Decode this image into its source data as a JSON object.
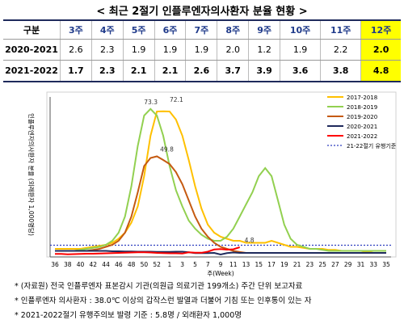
{
  "title": "< 최근 2절기 인플루엔자의사환자 분율 현황 >",
  "table": {
    "header": [
      "구분",
      "3주",
      "4주",
      "5주",
      "6주",
      "7주",
      "8주",
      "9주",
      "10주",
      "11주",
      "12주"
    ],
    "rows": [
      [
        "2020-2021",
        "2.6",
        "2.3",
        "1.9",
        "1.9",
        "1.9",
        "2.0",
        "1.2",
        "1.9",
        "2.2",
        "2.0"
      ],
      [
        "2021-2022",
        "1.7",
        "2.3",
        "2.1",
        "2.1",
        "2.6",
        "3.7",
        "3.9",
        "3.6",
        "3.8",
        "4.8"
      ]
    ]
  },
  "chart_data": {
    "type": "line",
    "y_label": "인플루엔자의사환자 분율 (외래환자 1,000명당)",
    "x_label": "주(Week)",
    "categories": [
      "36",
      null,
      "38",
      null,
      "40",
      null,
      "42",
      null,
      "44",
      null,
      "46",
      null,
      "48",
      null,
      "50",
      null,
      "52",
      null,
      "1",
      null,
      "3",
      null,
      "5",
      null,
      "7",
      null,
      "9",
      null,
      "11",
      null,
      "13",
      null,
      "15",
      null,
      "17",
      null,
      "19",
      null,
      "21",
      null,
      "23",
      null,
      "25",
      null,
      "27",
      null,
      "29",
      null,
      "31",
      null,
      "33",
      null,
      "35"
    ],
    "ylim": [
      0,
      80
    ],
    "legend": "top-right",
    "series": [
      {
        "name": "2017-2018",
        "color": "#ffc000",
        "values": [
          4,
          4,
          4,
          4,
          4,
          4.5,
          5,
          5.5,
          6,
          7,
          9,
          12,
          17,
          25,
          40,
          60,
          72,
          72.1,
          72,
          68,
          60,
          48,
          35,
          24,
          16,
          12,
          10,
          9,
          8,
          8,
          7,
          7,
          7,
          7,
          8,
          7,
          6,
          5,
          5,
          4.5,
          4,
          4,
          4,
          3.5,
          3.5,
          3,
          3,
          3,
          3,
          2.5,
          3,
          3,
          3
        ]
      },
      {
        "name": "2018-2019",
        "color": "#92d050",
        "values": [
          3,
          3,
          3,
          3,
          3.5,
          4,
          4.5,
          5,
          6,
          8,
          12,
          20,
          35,
          55,
          70,
          73.3,
          70,
          60,
          45,
          33,
          25,
          18,
          14,
          11,
          9,
          8,
          8,
          10,
          14,
          20,
          26,
          32,
          40,
          44,
          40,
          28,
          16,
          9,
          6,
          5,
          4,
          4,
          3.5,
          3,
          3,
          3,
          3,
          3,
          3,
          3,
          3,
          3,
          3
        ]
      },
      {
        "name": "2019-2020",
        "color": "#c55a11",
        "values": [
          3,
          3,
          3,
          3,
          3,
          3,
          3.5,
          4,
          5,
          6,
          8,
          12,
          20,
          32,
          45,
          49,
          49.8,
          48,
          46,
          42,
          36,
          28,
          20,
          14,
          10,
          7,
          5,
          4,
          3,
          2.5,
          2,
          2,
          2,
          2,
          2,
          2,
          2,
          2,
          2,
          2,
          2,
          2,
          2,
          2,
          2,
          2,
          2,
          2,
          2,
          2,
          2,
          2,
          2
        ]
      },
      {
        "name": "2020-2021",
        "color": "#1f2a5c",
        "values": [
          3,
          3,
          3,
          3,
          3,
          3,
          3,
          3,
          3,
          2.8,
          2.8,
          2.7,
          2.7,
          2.6,
          2.6,
          2.6,
          2.5,
          2.5,
          2.5,
          2.6,
          2.6,
          2.3,
          1.9,
          1.9,
          1.9,
          2.0,
          1.2,
          1.9,
          2.2,
          2.0,
          2,
          2,
          2,
          2,
          2,
          2,
          2,
          2,
          2,
          2,
          2,
          2,
          2,
          2,
          2,
          2,
          2,
          2,
          2,
          2,
          2,
          2,
          2
        ]
      },
      {
        "name": "2021-2022",
        "color": "#ff0000",
        "values": [
          1.5,
          1.5,
          1.3,
          1.4,
          1.5,
          1.6,
          1.6,
          1.7,
          1.8,
          1.9,
          2.0,
          2.1,
          2.2,
          2.3,
          2.3,
          2.2,
          2.0,
          1.9,
          1.8,
          1.8,
          1.7,
          2.3,
          2.1,
          2.1,
          2.6,
          3.7,
          3.9,
          3.6,
          3.8,
          4.8,
          null,
          null,
          null,
          null,
          null,
          null,
          null,
          null,
          null,
          null,
          null,
          null,
          null,
          null,
          null,
          null,
          null,
          null,
          null,
          null,
          null,
          null,
          null
        ]
      }
    ],
    "threshold": {
      "name": "21-22절기 유행기준",
      "value": 5.8,
      "color": "#2f3fbf"
    }
  },
  "notes": [
    "* (자료원) 전국 인플루엔자 표본감시 기관(의원급 의료기관 199개소) 주간 단위 보고자료",
    "* 인플루엔자 의사환자 : 38.0℃ 이상의 갑작스런 발열과 더불어 기침 또는 인후통이 있는 자",
    "* 2021-2022절기 유행주의보 발령 기준 : 5.8명 / 외래환자 1,000명"
  ]
}
